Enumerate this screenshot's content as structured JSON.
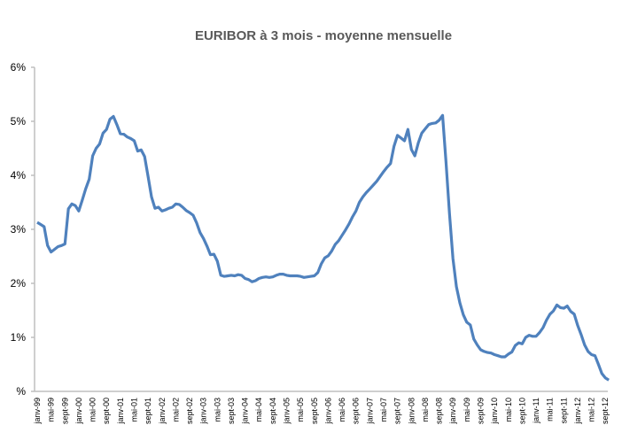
{
  "chart_data": {
    "type": "line",
    "title": "EURIBOR à 3 mois - moyenne mensuelle",
    "xlabel": "",
    "ylabel": "",
    "ylim": [
      0,
      6
    ],
    "yticks": [
      "%",
      "1%",
      "2%",
      "3%",
      "4%",
      "5%",
      "6%"
    ],
    "grid": false,
    "start_month": "janv-99",
    "xtick_labels": [
      "janv-99",
      "mai-99",
      "sept-99",
      "janv-00",
      "mai-00",
      "sept-00",
      "janv-01",
      "mai-01",
      "sept-01",
      "janv-02",
      "mai-02",
      "sept-02",
      "janv-03",
      "mai-03",
      "sept-03",
      "janv-04",
      "mai-04",
      "sept-04",
      "janv-05",
      "mai-05",
      "sept-05",
      "janv-06",
      "mai-06",
      "sept-06",
      "janv-07",
      "mai-07",
      "sept-07",
      "janv-08",
      "mai-08",
      "sept-08",
      "janv-09",
      "mai-09",
      "sept-09",
      "janv-10",
      "mai-10",
      "sept-10",
      "janv-11",
      "mai-11",
      "sept-11",
      "janv-12",
      "mai-12",
      "sept-12"
    ],
    "series": [
      {
        "name": "EURIBOR 3 mois",
        "color": "#4f81bd",
        "values": [
          3.13,
          3.09,
          3.05,
          2.7,
          2.58,
          2.63,
          2.68,
          2.7,
          2.73,
          3.38,
          3.47,
          3.44,
          3.34,
          3.54,
          3.75,
          3.93,
          4.36,
          4.5,
          4.58,
          4.78,
          4.85,
          5.04,
          5.09,
          4.94,
          4.77,
          4.76,
          4.71,
          4.68,
          4.64,
          4.45,
          4.47,
          4.35,
          3.98,
          3.6,
          3.39,
          3.41,
          3.34,
          3.36,
          3.39,
          3.41,
          3.47,
          3.46,
          3.41,
          3.35,
          3.31,
          3.26,
          3.12,
          2.94,
          2.83,
          2.69,
          2.53,
          2.54,
          2.41,
          2.15,
          2.13,
          2.14,
          2.15,
          2.14,
          2.16,
          2.15,
          2.09,
          2.07,
          2.03,
          2.05,
          2.09,
          2.11,
          2.12,
          2.11,
          2.12,
          2.15,
          2.17,
          2.17,
          2.15,
          2.14,
          2.14,
          2.14,
          2.13,
          2.11,
          2.12,
          2.13,
          2.14,
          2.2,
          2.36,
          2.47,
          2.51,
          2.6,
          2.72,
          2.79,
          2.89,
          2.99,
          3.1,
          3.23,
          3.34,
          3.5,
          3.6,
          3.68,
          3.75,
          3.82,
          3.89,
          3.98,
          4.07,
          4.15,
          4.22,
          4.54,
          4.74,
          4.69,
          4.64,
          4.85,
          4.48,
          4.36,
          4.6,
          4.78,
          4.86,
          4.94,
          4.96,
          4.97,
          5.02,
          5.11,
          4.24,
          3.29,
          2.46,
          1.94,
          1.64,
          1.42,
          1.28,
          1.23,
          0.97,
          0.86,
          0.77,
          0.74,
          0.72,
          0.71,
          0.68,
          0.66,
          0.64,
          0.64,
          0.69,
          0.73,
          0.85,
          0.9,
          0.88,
          1.0,
          1.04,
          1.02,
          1.02,
          1.09,
          1.18,
          1.32,
          1.43,
          1.49,
          1.6,
          1.55,
          1.54,
          1.58,
          1.48,
          1.43,
          1.22,
          1.05,
          0.86,
          0.74,
          0.68,
          0.66,
          0.5,
          0.33,
          0.25,
          0.21
        ]
      }
    ]
  }
}
